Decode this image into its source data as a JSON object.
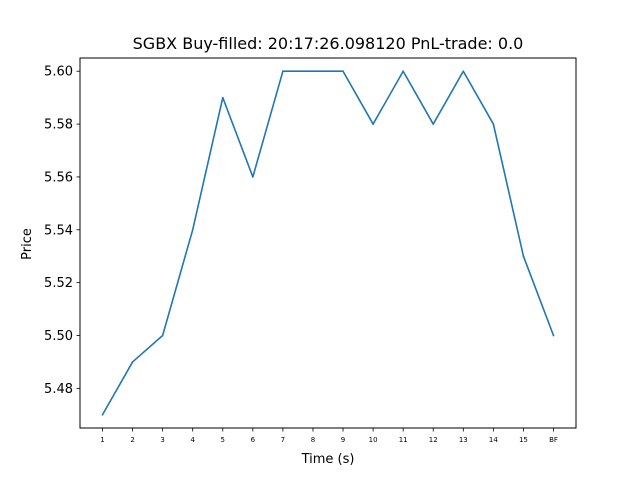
{
  "chart_data": {
    "type": "line",
    "title": "SGBX  Buy-filled:  20:17:26.098120  PnL-trade:  0.0",
    "xlabel": "Time (s)",
    "ylabel": "Price",
    "categories": [
      "1",
      "2",
      "3",
      "4",
      "5",
      "6",
      "7",
      "8",
      "9",
      "10",
      "11",
      "12",
      "13",
      "14",
      "15",
      "BF"
    ],
    "series": [
      {
        "values": [
          5.47,
          5.49,
          5.5,
          5.54,
          5.59,
          5.56,
          5.6,
          5.6,
          5.6,
          5.58,
          5.6,
          5.58,
          5.6,
          5.58,
          5.53,
          5.5
        ]
      }
    ],
    "ylim": [
      5.465,
      5.605
    ],
    "yticks": [
      "5.48",
      "5.50",
      "5.52",
      "5.54",
      "5.56",
      "5.58",
      "5.60"
    ],
    "grid": false,
    "line_color": "#1f77b4"
  }
}
